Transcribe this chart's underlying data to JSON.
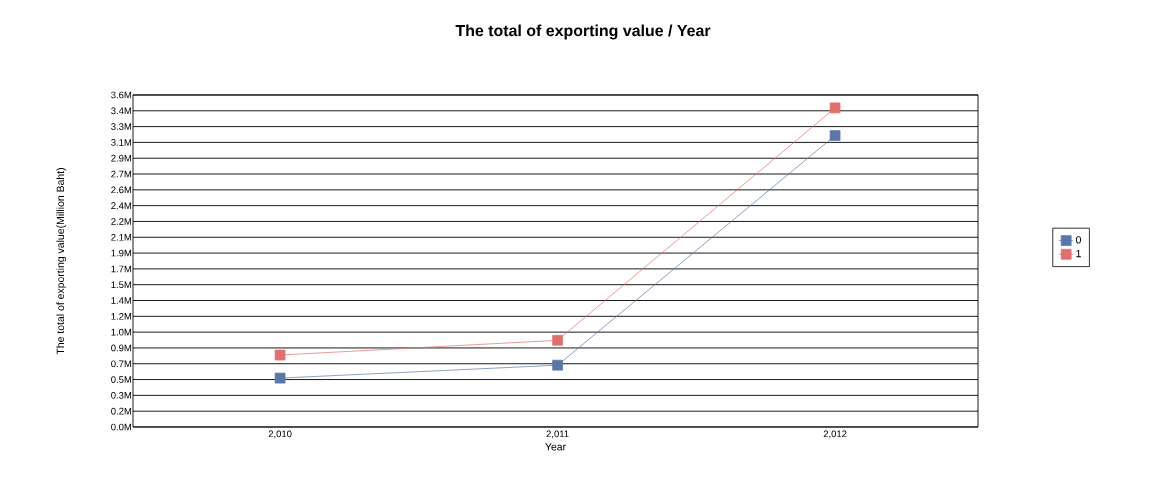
{
  "chart_data": {
    "type": "line",
    "title": "The total of exporting value / Year",
    "xlabel": "Year",
    "ylabel": "The total of exporting value(Million Baht)",
    "categories": [
      "2,010",
      "2,011",
      "2,012"
    ],
    "series": [
      {
        "name": "0",
        "color": "#5b77a8",
        "values": [
          0.53,
          0.67,
          3.16
        ]
      },
      {
        "name": "1",
        "color": "#e07070",
        "values": [
          0.78,
          0.94,
          3.46
        ]
      }
    ],
    "ylim": [
      0,
      3.6
    ],
    "yticks": [
      {
        "value": 0,
        "label": "0.0M"
      },
      {
        "value": 0.1714,
        "label": "0.2M"
      },
      {
        "value": 0.3429,
        "label": "0.3M"
      },
      {
        "value": 0.5143,
        "label": "0.5M"
      },
      {
        "value": 0.6857,
        "label": "0.7M"
      },
      {
        "value": 0.8571,
        "label": "0.9M"
      },
      {
        "value": 1.0286,
        "label": "1.0M"
      },
      {
        "value": 1.2,
        "label": "1.2M"
      },
      {
        "value": 1.3714,
        "label": "1.4M"
      },
      {
        "value": 1.5429,
        "label": "1.5M"
      },
      {
        "value": 1.7143,
        "label": "1.7M"
      },
      {
        "value": 1.8857,
        "label": "1.9M"
      },
      {
        "value": 2.0571,
        "label": "2.1M"
      },
      {
        "value": 2.2286,
        "label": "2.2M"
      },
      {
        "value": 2.4,
        "label": "2.4M"
      },
      {
        "value": 2.5714,
        "label": "2.6M"
      },
      {
        "value": 2.7429,
        "label": "2.7M"
      },
      {
        "value": 2.9143,
        "label": "2.9M"
      },
      {
        "value": 3.0857,
        "label": "3.1M"
      },
      {
        "value": 3.2571,
        "label": "3.3M"
      },
      {
        "value": 3.4286,
        "label": "3.4M"
      },
      {
        "value": 3.6,
        "label": "3.6M"
      }
    ],
    "grid": "y",
    "legend": "right",
    "marker": "square",
    "line_style": "solid"
  }
}
